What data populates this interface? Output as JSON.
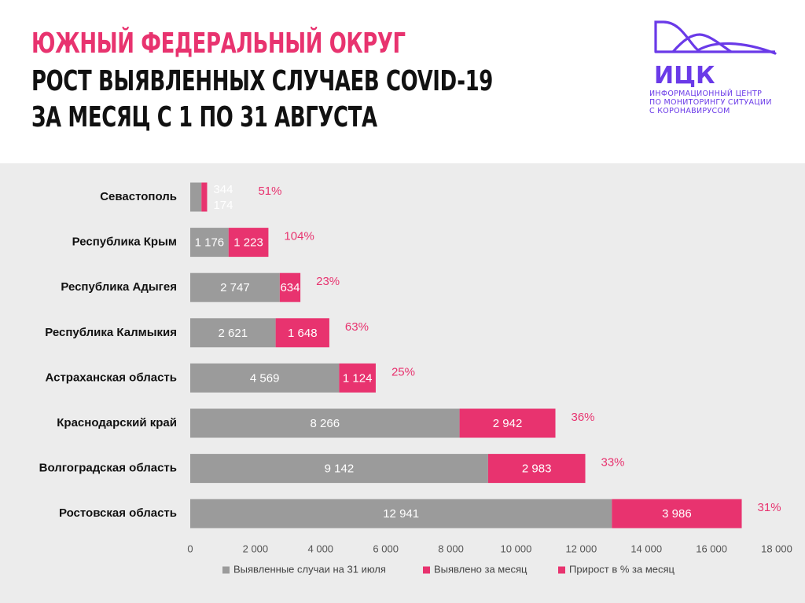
{
  "header": {
    "title_line1": "ЮЖНЫЙ ФЕДЕРАЛЬНЫЙ ОКРУГ",
    "title_line2": "РОСТ ВЫЯВЛЕННЫХ СЛУЧАЕВ COVID-19",
    "title_line3": "ЗА МЕСЯЦ С 1 ПО 31 АВГУСТА"
  },
  "logo": {
    "name": "ИЦК",
    "subtitle_lines": [
      "ИНФОРМАЦИОННЫЙ ЦЕНТР",
      "ПО МОНИТОРИНГУ СИТУАЦИИ",
      "С КОРОНАВИРУСОМ"
    ],
    "color": "#6a3ae8"
  },
  "colors": {
    "base": "#9b9b9b",
    "added": "#e8336f",
    "percent": "#e8336f",
    "background": "#ececec"
  },
  "chart_data": {
    "type": "bar",
    "orientation": "horizontal",
    "stacked": true,
    "categories": [
      "Севастополь",
      "Республика Крым",
      "Республика Адыгея",
      "Республика Калмыкия",
      "Астраханская область",
      "Краснодарский край",
      "Волгоградская область",
      "Ростовская область"
    ],
    "series": [
      {
        "name": "Выявленные случаи на 31 июля",
        "values": [
          344,
          1176,
          2747,
          2621,
          4569,
          8266,
          9142,
          12941
        ],
        "labels": [
          "344",
          "1 176",
          "2 747",
          "2 621",
          "4 569",
          "8 266",
          "9 142",
          "12 941"
        ]
      },
      {
        "name": "Выявлено за месяц",
        "values": [
          174,
          1223,
          634,
          1648,
          1124,
          2942,
          2983,
          3986
        ],
        "labels": [
          "174",
          "1 223",
          "634",
          "1 648",
          "1 124",
          "2 942",
          "2 983",
          "3 986"
        ]
      }
    ],
    "growth_percent": {
      "name": "Прирост в % за месяц",
      "labels": [
        "51%",
        "104%",
        "23%",
        "63%",
        "25%",
        "36%",
        "33%",
        "31%"
      ]
    },
    "xlim": [
      0,
      18000
    ],
    "xticks": [
      0,
      2000,
      4000,
      6000,
      8000,
      10000,
      12000,
      14000,
      16000,
      18000
    ],
    "xtick_labels": [
      "0",
      "2 000",
      "4 000",
      "6 000",
      "8 000",
      "10 000",
      "12 000",
      "14 000",
      "16 000",
      "18 000"
    ],
    "legend": {
      "placement": "bottom",
      "items": [
        "Выявленные случаи на 31 июля",
        "Выявлено за месяц",
        "Прирост в % за месяц"
      ]
    }
  }
}
